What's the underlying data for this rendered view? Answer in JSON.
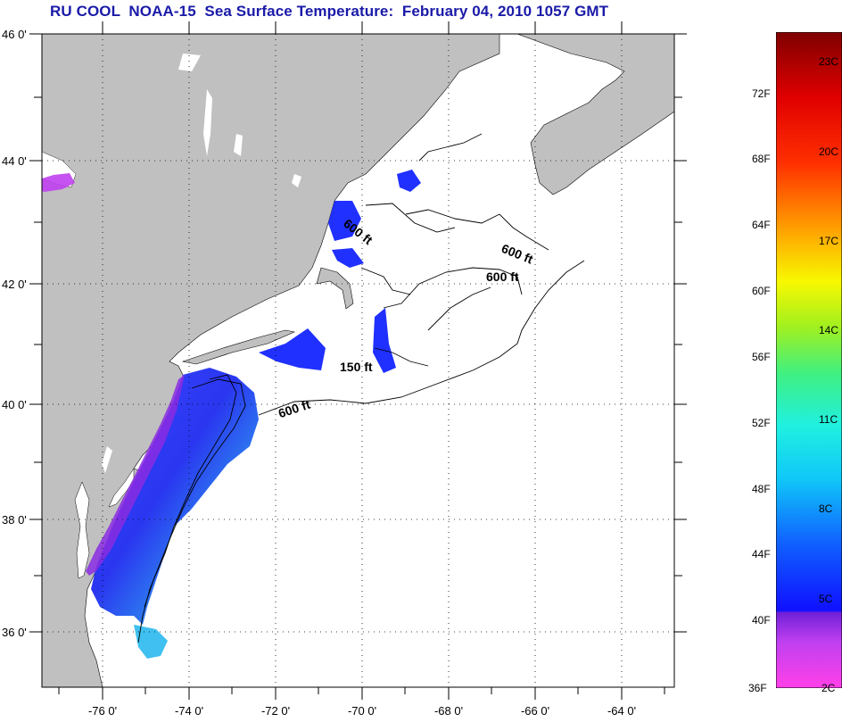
{
  "title": "RU COOL  NOAA-15  Sea Surface Temperature:  February 04, 2010 1057 GMT",
  "latitude_labels": [
    "46 0'",
    "44 0'",
    "42 0'",
    "40 0'",
    "38 0'",
    "36 0'"
  ],
  "longitude_labels": [
    "-76 0'",
    "-74 0'",
    "-72 0'",
    "-70 0'",
    "-68 0'",
    "-66 0'",
    "-64 0'"
  ],
  "contour_labels": [
    "600 ft",
    "600 ft",
    "600 ft",
    "150 ft",
    "600 ft"
  ],
  "colorbar": {
    "fahrenheit_labels": [
      "72F",
      "68F",
      "64F",
      "60F",
      "56F",
      "52F",
      "48F",
      "44F",
      "40F",
      "36F"
    ],
    "celsius_labels": [
      "23C",
      "20C",
      "17C",
      "14C",
      "11C",
      "8C",
      "5C",
      "2C"
    ]
  },
  "colors": {
    "land": "#c0c0c0",
    "ocean": "#ffffff",
    "title": "#1a1aa8",
    "cold": "#2030ff",
    "violet": "#8a2be2",
    "magenta": "#ff30e0",
    "cyan": "#40e0f0"
  }
}
